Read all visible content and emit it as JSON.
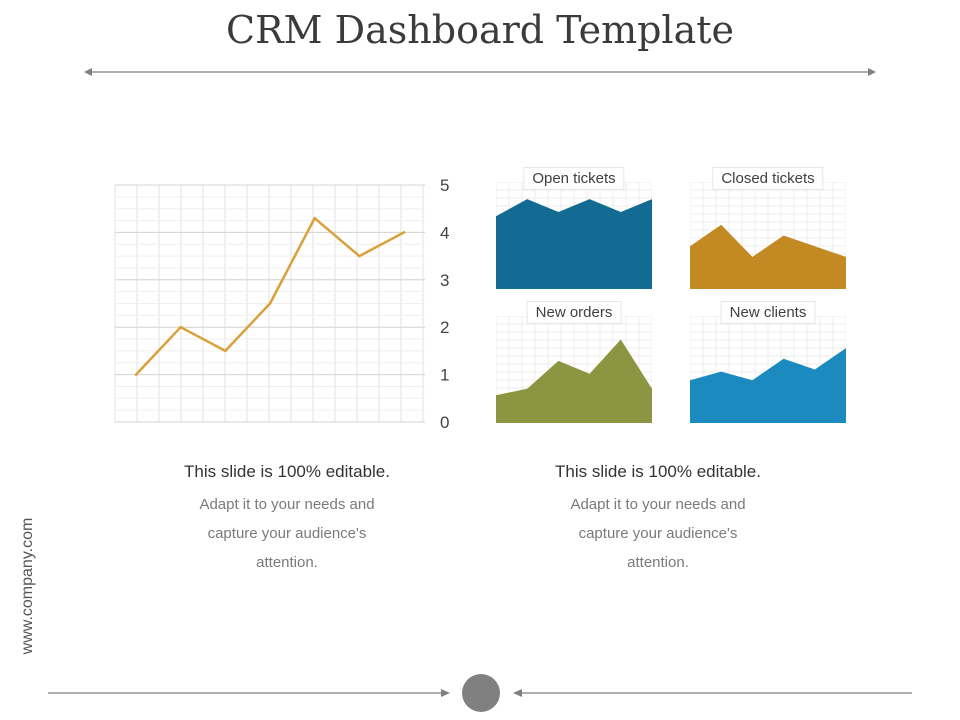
{
  "slide": {
    "title": "CRM Dashboard Template",
    "side_text": "www.company.com",
    "colors": {
      "line": "#D9A13B",
      "open_tickets": "#136B94",
      "closed_tickets": "#C38A24",
      "new_orders": "#8C9542",
      "new_clients": "#1A8ABF",
      "grid": "#e3e3e3",
      "arrow": "#7f7f7f",
      "dot": "#808080"
    }
  },
  "chart_data": [
    {
      "type": "line",
      "x": [
        1,
        2,
        3,
        4,
        5,
        6,
        7
      ],
      "values": [
        1.0,
        2.0,
        1.5,
        2.5,
        4.3,
        3.5,
        4.0
      ],
      "ylim": [
        0,
        5
      ],
      "yticks": [
        "0",
        "1",
        "2",
        "3",
        "4",
        "5"
      ],
      "grid": true
    },
    {
      "type": "area",
      "title": "Open tickets",
      "values": [
        3.4,
        4.2,
        3.6,
        4.2,
        3.6,
        4.2
      ],
      "ylim": [
        0,
        5
      ]
    },
    {
      "type": "area",
      "title": "Closed tickets",
      "values": [
        2.0,
        3.0,
        1.5,
        2.5,
        2.0,
        1.5
      ],
      "ylim": [
        0,
        5
      ]
    },
    {
      "type": "area",
      "title": "New orders",
      "values": [
        1.3,
        1.6,
        2.9,
        2.3,
        3.9,
        1.6
      ],
      "ylim": [
        0,
        5
      ]
    },
    {
      "type": "area",
      "title": "New clients",
      "values": [
        2.0,
        2.4,
        2.0,
        3.0,
        2.5,
        3.5
      ],
      "ylim": [
        0,
        5
      ]
    }
  ],
  "captions": [
    {
      "heading": "This slide is 100% editable.",
      "line1": "Adapt it to your needs and",
      "line2": "capture your audience's",
      "line3": "attention."
    },
    {
      "heading": "This slide is 100% editable.",
      "line1": "Adapt it to your needs and",
      "line2": "capture your audience's",
      "line3": "attention."
    }
  ]
}
